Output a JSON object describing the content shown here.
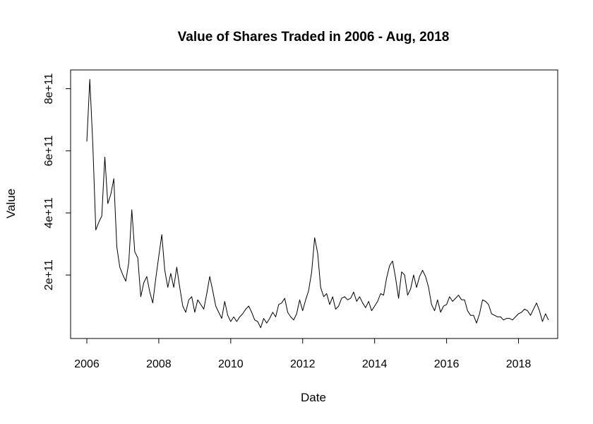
{
  "chart_data": {
    "type": "line",
    "title": "Value of Shares Traded in 2006 - Aug, 2018",
    "xlabel": "Date",
    "ylabel": "Value",
    "xlim": [
      2005.55,
      2019.05
    ],
    "ylim": [
      0,
      800000000000
    ],
    "x_ticks": [
      2006,
      2008,
      2010,
      2012,
      2014,
      2016,
      2018
    ],
    "x_tick_labels": [
      "2006",
      "2008",
      "2010",
      "2012",
      "2014",
      "2016",
      "2018"
    ],
    "y_ticks": [
      200000000000,
      400000000000,
      600000000000,
      800000000000
    ],
    "y_tick_labels": [
      "2e+11",
      "4e+11",
      "6e+11",
      "8e+11"
    ],
    "grid": false,
    "color": "#000000",
    "series": [
      {
        "start": 2006.0,
        "step": 0.08333,
        "values": [
          630000000000.0,
          830000000000.0,
          620000000000.0,
          345000000000.0,
          370000000000.0,
          390000000000.0,
          580000000000.0,
          430000000000.0,
          460000000000.0,
          510000000000.0,
          290000000000.0,
          225000000000.0,
          200000000000.0,
          180000000000.0,
          240000000000.0,
          410000000000.0,
          275000000000.0,
          255000000000.0,
          130000000000.0,
          175000000000.0,
          195000000000.0,
          145000000000.0,
          110000000000.0,
          190000000000.0,
          260000000000.0,
          330000000000.0,
          215000000000.0,
          160000000000.0,
          205000000000.0,
          160000000000.0,
          225000000000.0,
          160000000000.0,
          100000000000.0,
          80000000000.0,
          120000000000.0,
          130000000000.0,
          80000000000.0,
          120000000000.0,
          105000000000.0,
          90000000000.0,
          140000000000.0,
          195000000000.0,
          150000000000.0,
          100000000000.0,
          80000000000.0,
          60000000000.0,
          115000000000.0,
          70000000000.0,
          50000000000.0,
          65000000000.0,
          50000000000.0,
          65000000000.0,
          75000000000.0,
          90000000000.0,
          100000000000.0,
          80000000000.0,
          55000000000.0,
          50000000000.0,
          30000000000.0,
          60000000000.0,
          45000000000.0,
          60000000000.0,
          80000000000.0,
          65000000000.0,
          105000000000.0,
          110000000000.0,
          125000000000.0,
          80000000000.0,
          65000000000.0,
          55000000000.0,
          75000000000.0,
          120000000000.0,
          85000000000.0,
          120000000000.0,
          150000000000.0,
          210000000000.0,
          320000000000.0,
          270000000000.0,
          160000000000.0,
          130000000000.0,
          140000000000.0,
          105000000000.0,
          130000000000.0,
          90000000000.0,
          100000000000.0,
          125000000000.0,
          130000000000.0,
          120000000000.0,
          125000000000.0,
          145000000000.0,
          115000000000.0,
          130000000000.0,
          110000000000.0,
          95000000000.0,
          115000000000.0,
          85000000000.0,
          100000000000.0,
          115000000000.0,
          140000000000.0,
          135000000000.0,
          190000000000.0,
          230000000000.0,
          245000000000.0,
          190000000000.0,
          125000000000.0,
          210000000000.0,
          200000000000.0,
          135000000000.0,
          155000000000.0,
          200000000000.0,
          160000000000.0,
          195000000000.0,
          215000000000.0,
          195000000000.0,
          160000000000.0,
          105000000000.0,
          85000000000.0,
          120000000000.0,
          80000000000.0,
          100000000000.0,
          105000000000.0,
          130000000000.0,
          115000000000.0,
          125000000000.0,
          135000000000.0,
          120000000000.0,
          120000000000.0,
          85000000000.0,
          70000000000.0,
          70000000000.0,
          45000000000.0,
          75000000000.0,
          120000000000.0,
          115000000000.0,
          105000000000.0,
          75000000000.0,
          70000000000.0,
          65000000000.0,
          65000000000.0,
          55000000000.0,
          60000000000.0,
          60000000000.0,
          55000000000.0,
          65000000000.0,
          75000000000.0,
          80000000000.0,
          90000000000.0,
          85000000000.0,
          70000000000.0,
          90000000000.0,
          110000000000.0,
          85000000000.0,
          50000000000.0,
          75000000000.0,
          55000000000.0
        ]
      }
    ]
  }
}
